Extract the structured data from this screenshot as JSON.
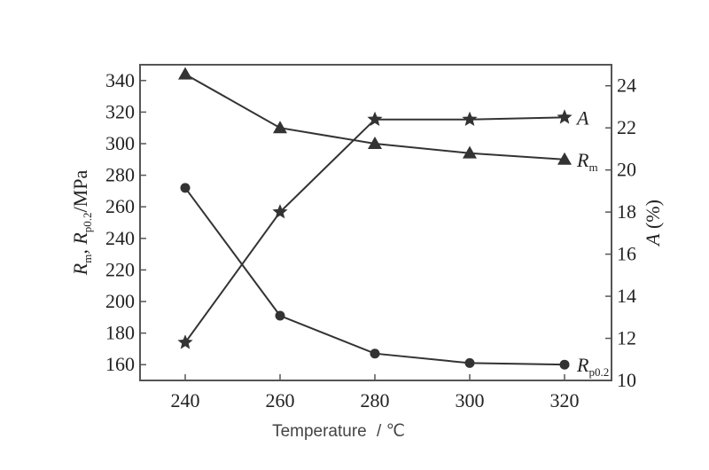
{
  "chart_data": {
    "type": "line",
    "x": [
      240,
      260,
      280,
      300,
      320
    ],
    "xlabel_text": "Temperature",
    "xlabel_unit": "/ ℃",
    "left_axis": {
      "label_parts": [
        "R",
        "m",
        ", R",
        "p0.2",
        "/MPa"
      ],
      "ylim": [
        150,
        350
      ],
      "ticks": [
        160,
        180,
        200,
        220,
        240,
        260,
        280,
        300,
        320,
        340
      ]
    },
    "right_axis": {
      "label_parts": [
        "A",
        " (%)"
      ],
      "ylim": [
        10,
        25
      ],
      "ticks": [
        10,
        12,
        14,
        16,
        18,
        20,
        22,
        24
      ]
    },
    "series": [
      {
        "name": "A",
        "name_sub": "",
        "axis": "right",
        "marker": "star",
        "values": [
          11.8,
          18.0,
          22.4,
          22.4,
          22.5
        ]
      },
      {
        "name": "R",
        "name_sub": "m",
        "axis": "left",
        "marker": "triangle",
        "values": [
          344,
          310,
          300,
          294,
          290
        ]
      },
      {
        "name": "R",
        "name_sub": "p0.2",
        "axis": "left",
        "marker": "circle",
        "values": [
          272,
          191,
          167,
          161,
          160
        ]
      }
    ],
    "grid": false,
    "line_color": "#333333"
  }
}
